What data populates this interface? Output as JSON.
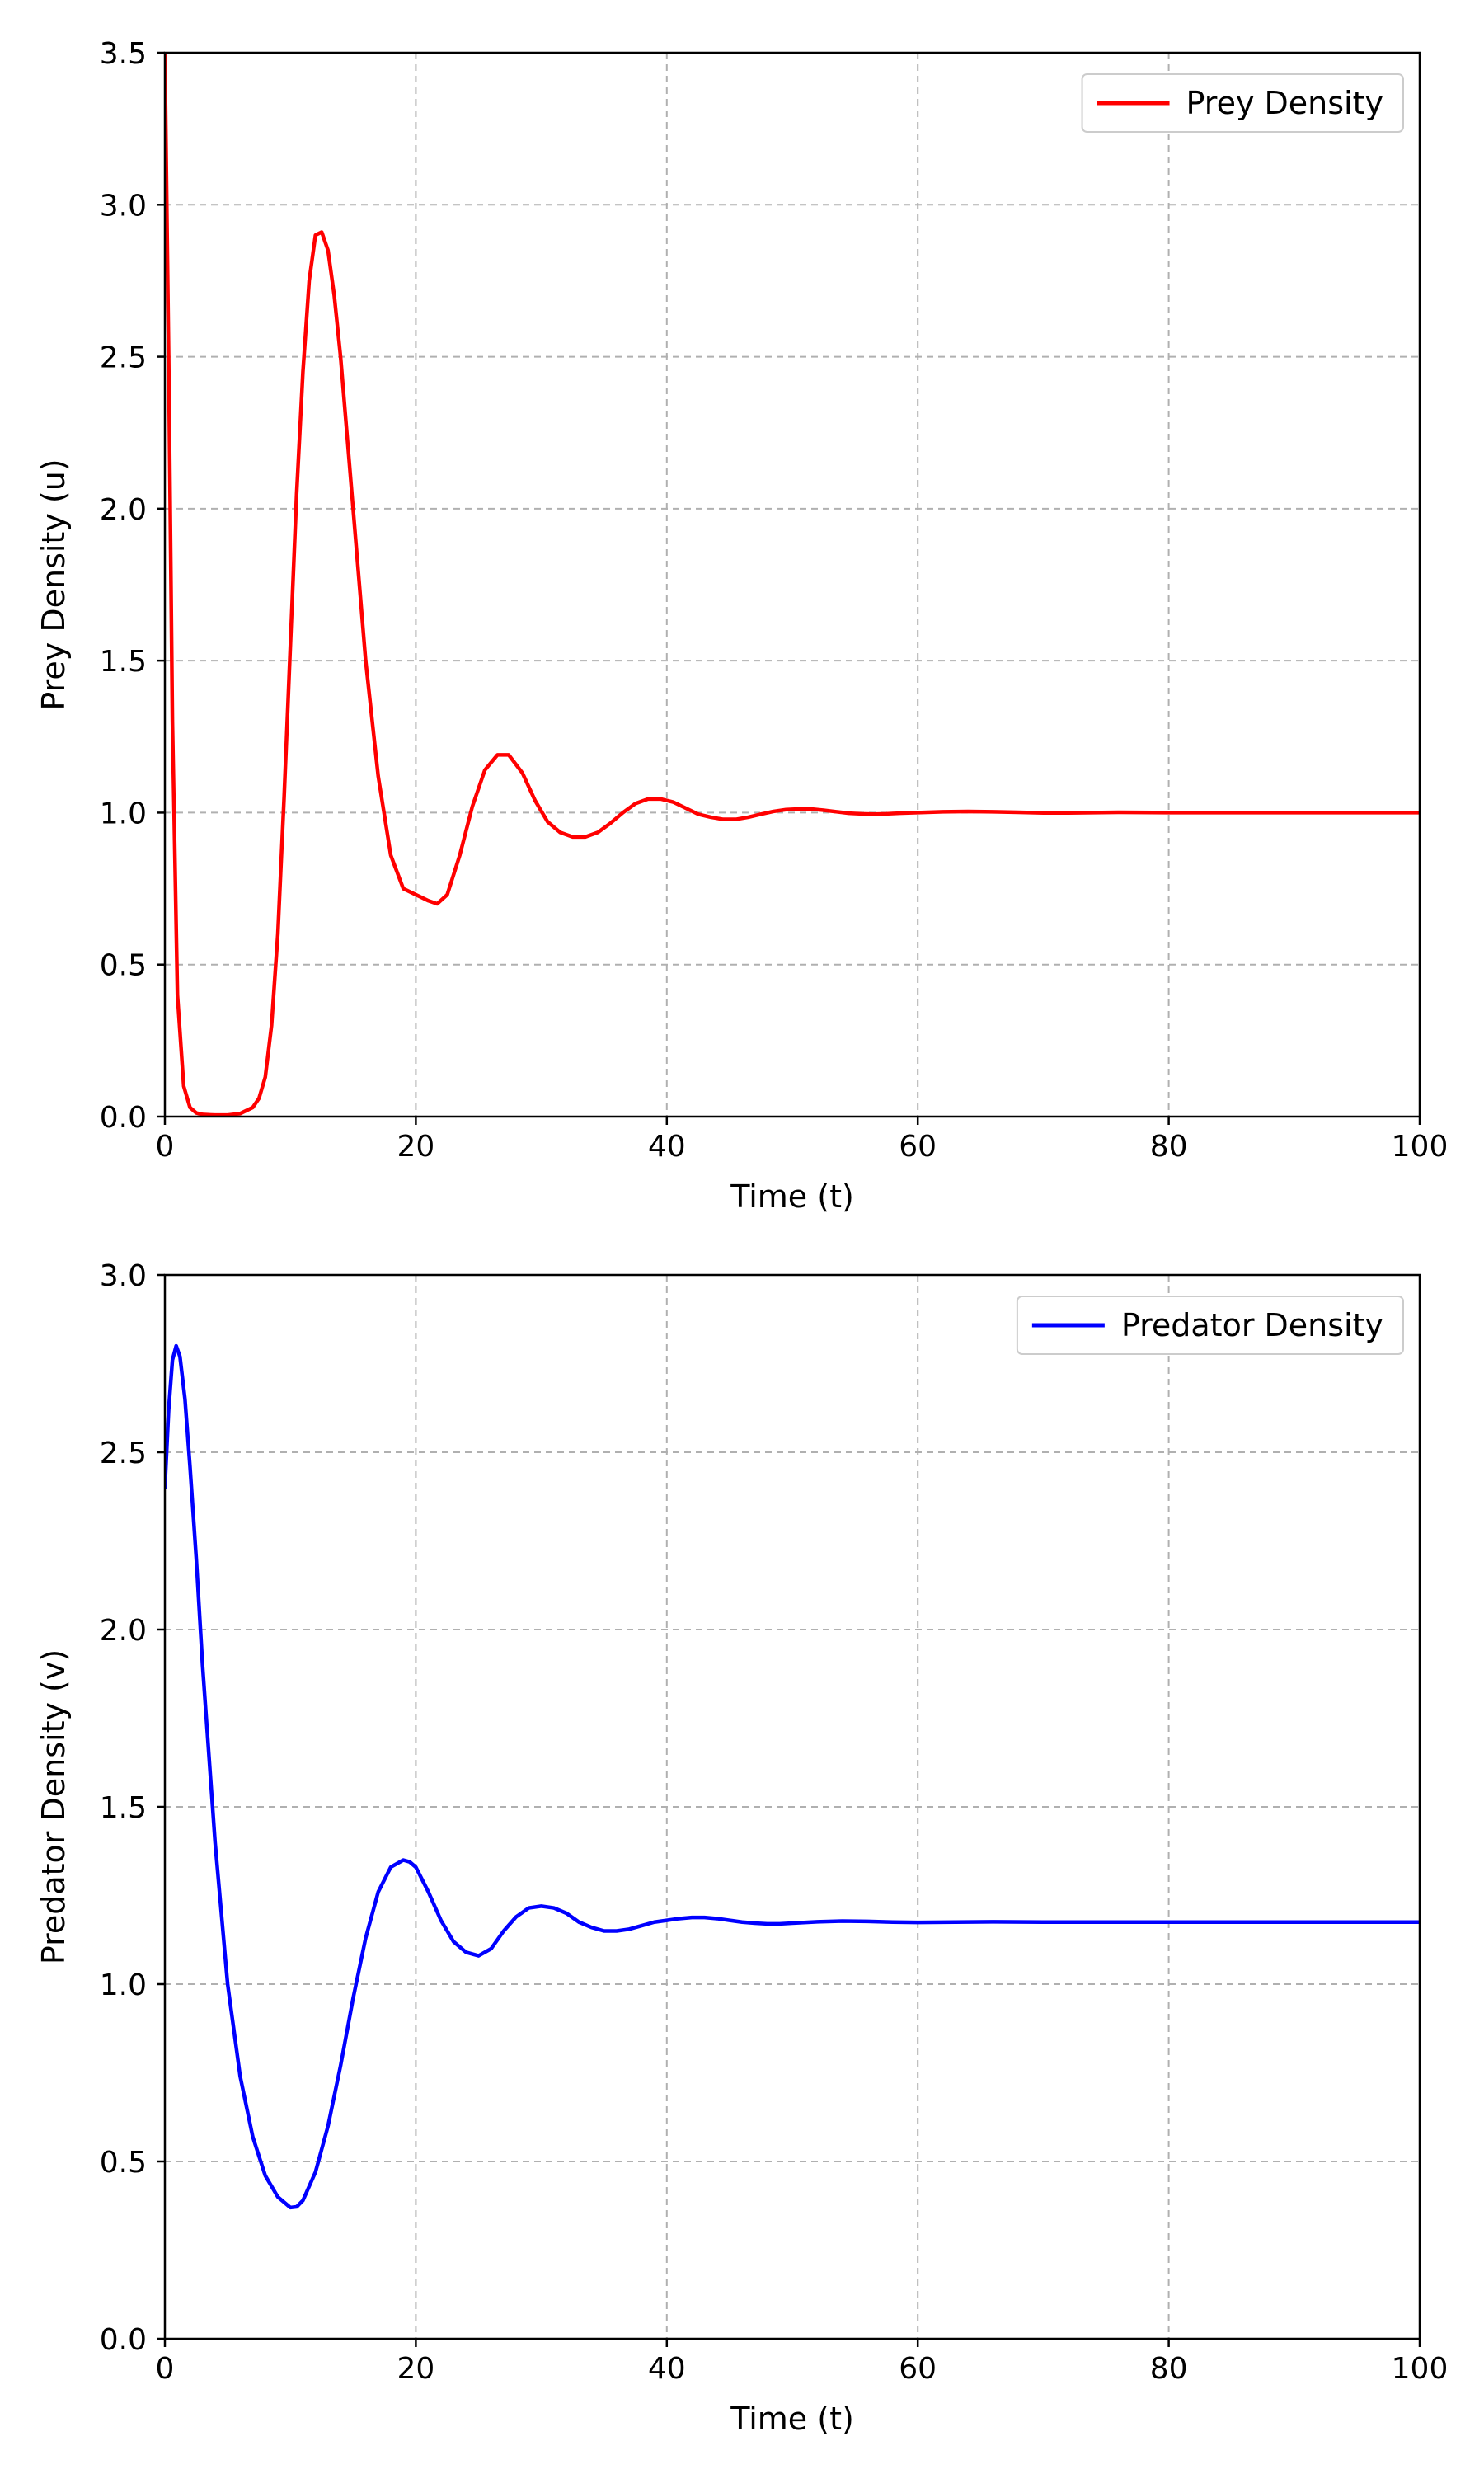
{
  "chart_data": [
    {
      "type": "line",
      "xlabel": "Time (t)",
      "ylabel": "Prey Density (u)",
      "xlim": [
        0,
        100
      ],
      "ylim": [
        0,
        3.5
      ],
      "xticks": [
        0,
        20,
        40,
        60,
        80,
        100
      ],
      "xtick_labels": [
        "0",
        "20",
        "40",
        "60",
        "80",
        "100"
      ],
      "yticks": [
        0,
        0.5,
        1,
        1.5,
        2,
        2.5,
        3,
        3.5
      ],
      "ytick_labels": [
        "0.0",
        "0.5",
        "1.0",
        "1.5",
        "2.0",
        "2.5",
        "3.0",
        "3.5"
      ],
      "grid": true,
      "legend_position": "top-right",
      "series": [
        {
          "name": "Prey Density",
          "color": "#ff0000",
          "x": [
            0,
            0.3,
            0.6,
            1.0,
            1.5,
            2.0,
            2.5,
            3,
            4,
            5,
            6,
            7,
            7.5,
            8,
            8.5,
            9,
            9.5,
            10,
            10.5,
            11,
            11.5,
            12,
            12.5,
            13,
            13.5,
            14,
            15,
            16,
            17,
            18,
            19,
            20,
            21,
            21.7,
            22.5,
            23.5,
            24.5,
            25.5,
            26.5,
            27.4,
            28.5,
            29.5,
            30.5,
            31.5,
            32.5,
            33.5,
            34.5,
            35.5,
            36.5,
            37.5,
            38.5,
            39.5,
            40.5,
            41.5,
            42.5,
            43.5,
            44.5,
            45.5,
            46.5,
            47.5,
            48.5,
            49.5,
            50.5,
            51.5,
            52.5,
            53.5,
            54.5,
            55.5,
            56.5,
            57.5,
            58.5,
            60,
            62,
            64,
            66,
            68,
            70,
            72,
            74,
            76,
            80,
            85,
            90,
            95,
            100
          ],
          "values": [
            3.5,
            2.5,
            1.3,
            0.4,
            0.1,
            0.03,
            0.012,
            0.007,
            0.005,
            0.005,
            0.01,
            0.03,
            0.06,
            0.13,
            0.3,
            0.6,
            1.05,
            1.55,
            2.05,
            2.45,
            2.75,
            2.9,
            2.91,
            2.85,
            2.7,
            2.5,
            2.0,
            1.5,
            1.12,
            0.86,
            0.75,
            0.73,
            0.71,
            0.7,
            0.73,
            0.86,
            1.02,
            1.14,
            1.19,
            1.19,
            1.13,
            1.04,
            0.97,
            0.935,
            0.92,
            0.92,
            0.935,
            0.965,
            1.0,
            1.03,
            1.045,
            1.045,
            1.035,
            1.015,
            0.995,
            0.985,
            0.978,
            0.978,
            0.985,
            0.995,
            1.004,
            1.01,
            1.012,
            1.012,
            1.008,
            1.003,
            0.998,
            0.996,
            0.995,
            0.996,
            0.998,
            1.0,
            1.003,
            1.004,
            1.003,
            1.001,
            0.999,
            0.999,
            1.0,
            1.001,
            1.0,
            1.0,
            1.0,
            1.0,
            1.0
          ]
        }
      ]
    },
    {
      "type": "line",
      "xlabel": "Time (t)",
      "ylabel": "Predator Density (v)",
      "xlim": [
        0,
        100
      ],
      "ylim": [
        0,
        3.0
      ],
      "xticks": [
        0,
        20,
        40,
        60,
        80,
        100
      ],
      "xtick_labels": [
        "0",
        "20",
        "40",
        "60",
        "80",
        "100"
      ],
      "yticks": [
        0,
        0.5,
        1,
        1.5,
        2,
        2.5,
        3
      ],
      "ytick_labels": [
        "0.0",
        "0.5",
        "1.0",
        "1.5",
        "2.0",
        "2.5",
        "3.0"
      ],
      "grid": true,
      "legend_position": "top-right",
      "series": [
        {
          "name": "Predator Density",
          "color": "#0000ff",
          "x": [
            0,
            0.3,
            0.6,
            0.9,
            1.2,
            1.6,
            2.0,
            2.5,
            3,
            4,
            5,
            6,
            7,
            8,
            9,
            10,
            10.5,
            11,
            12,
            13,
            14,
            15,
            16,
            17,
            18,
            19,
            19.5,
            20,
            21,
            22,
            23,
            24,
            25,
            26,
            27,
            28,
            29,
            30,
            31,
            32,
            33,
            34,
            35,
            36,
            37,
            38,
            39,
            40,
            41,
            42,
            43,
            44,
            45,
            46,
            47,
            48,
            49,
            50,
            52,
            54,
            56,
            58,
            60,
            63,
            66,
            70,
            75,
            80,
            85,
            90,
            95,
            100
          ],
          "values": [
            2.4,
            2.62,
            2.76,
            2.8,
            2.77,
            2.65,
            2.46,
            2.2,
            1.9,
            1.4,
            1.0,
            0.74,
            0.57,
            0.46,
            0.4,
            0.37,
            0.372,
            0.39,
            0.47,
            0.6,
            0.77,
            0.96,
            1.13,
            1.26,
            1.33,
            1.35,
            1.345,
            1.33,
            1.26,
            1.18,
            1.12,
            1.09,
            1.08,
            1.1,
            1.15,
            1.19,
            1.215,
            1.22,
            1.215,
            1.2,
            1.175,
            1.16,
            1.15,
            1.15,
            1.155,
            1.165,
            1.175,
            1.18,
            1.185,
            1.188,
            1.188,
            1.185,
            1.18,
            1.175,
            1.172,
            1.17,
            1.17,
            1.172,
            1.176,
            1.178,
            1.177,
            1.175,
            1.174,
            1.175,
            1.176,
            1.175,
            1.175,
            1.175,
            1.175,
            1.175,
            1.175,
            1.175
          ]
        }
      ]
    }
  ]
}
